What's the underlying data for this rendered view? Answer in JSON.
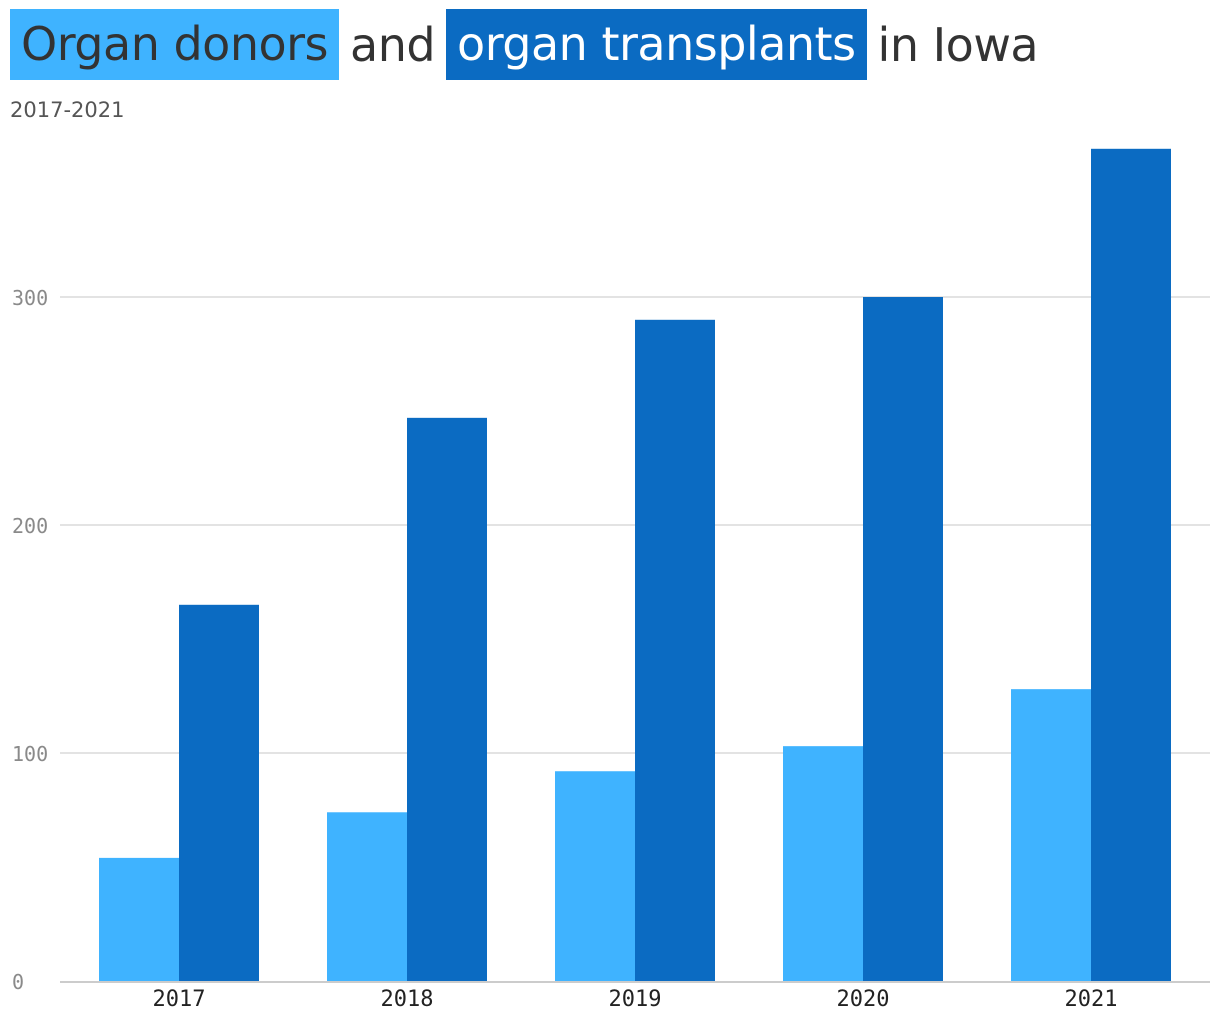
{
  "title": {
    "donors_label": "Organ donors",
    "and_text": "and",
    "transplants_label": "organ transplants",
    "suffix_text": "in Iowa"
  },
  "subtitle": "2017-2021",
  "colors": {
    "donors": "#3fb3ff",
    "transplants": "#0b6bc2",
    "gridline": "#e3e3e3",
    "baseline": "#cccccc"
  },
  "chart_data": {
    "type": "bar",
    "title": "Organ donors and organ transplants in Iowa",
    "subtitle": "2017-2021",
    "categories": [
      "2017",
      "2018",
      "2019",
      "2020",
      "2021"
    ],
    "series": [
      {
        "name": "Organ donors",
        "color": "#3fb3ff",
        "values": [
          54,
          74,
          92,
          103,
          128
        ]
      },
      {
        "name": "organ transplants",
        "color": "#0b6bc2",
        "values": [
          165,
          247,
          290,
          300,
          365
        ]
      }
    ],
    "yticks": [
      0,
      100,
      200,
      300
    ],
    "ylim": [
      0,
      365
    ],
    "grid": true,
    "xlabel": "",
    "ylabel": ""
  }
}
